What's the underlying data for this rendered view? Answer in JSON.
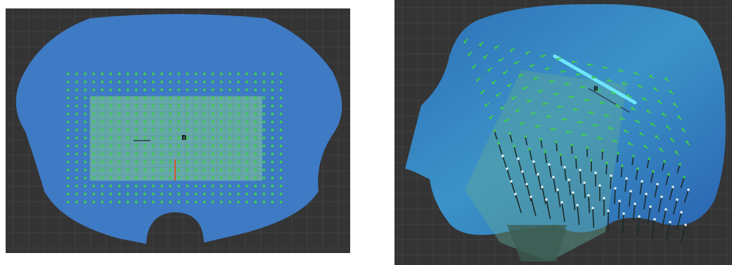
{
  "scene": {
    "background_color": "#343434",
    "grid_color": "#404040",
    "grid_major_color": "#4a4a4a",
    "mesh_color": "#3d78c0",
    "mesh_highlight_color": "#3f95cc",
    "patch_color": "#6fb2a6",
    "point_color": "#3ecf4a",
    "handle_color": "#6fe6ff"
  },
  "left_view": {
    "object_label": "B",
    "description_icon": "flat-mesh-with-control-points"
  },
  "right_view": {
    "object_label": "B",
    "description_icon": "deformed-mesh-with-vector-field"
  }
}
